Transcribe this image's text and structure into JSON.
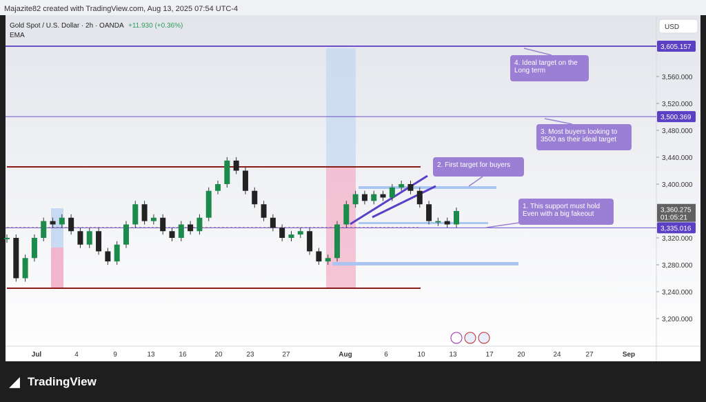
{
  "header": {
    "author": "Majazite82 created with TradingView.com, Aug 13, 2025 07:54 UTC-4"
  },
  "legend": {
    "symbol": "Gold Spot / U.S. Dollar · 2h · OANDA",
    "change": "+11.930 (+0.36%)",
    "indicator": "EMA"
  },
  "currency": "USD",
  "price_axis": {
    "ticks": [
      {
        "value": 3560,
        "label": "3,560.000"
      },
      {
        "value": 3520,
        "label": "3,520.000"
      },
      {
        "value": 3480,
        "label": "3,480.000"
      },
      {
        "value": 3440,
        "label": "3,440.000"
      },
      {
        "value": 3400,
        "label": "3,400.000"
      },
      {
        "value": 3320,
        "label": "3,320.000"
      },
      {
        "value": 3280,
        "label": "3,280.000"
      },
      {
        "value": 3240,
        "label": "3,240.000"
      },
      {
        "value": 3200,
        "label": "3,200.000"
      }
    ]
  },
  "price_labels": [
    {
      "value": 3605.157,
      "label": "3,605.157"
    },
    {
      "value": 3500.369,
      "label": "3,500.369"
    },
    {
      "value": 3335.016,
      "label": "3,335.016"
    }
  ],
  "last_price": {
    "value": 3360.275,
    "label": "3,360.275",
    "countdown": "01:05:21"
  },
  "date_axis": [
    "Jul",
    "4",
    "9",
    "13",
    "16",
    "20",
    "23",
    "27",
    "Aug",
    "6",
    "10",
    "13",
    "17",
    "20",
    "24",
    "27",
    "Sep"
  ],
  "closes": [
    3320,
    3260,
    3290,
    3320,
    3345,
    3340,
    3350,
    3330,
    3310,
    3330,
    3300,
    3285,
    3310,
    3340,
    3370,
    3345,
    3350,
    3330,
    3320,
    3340,
    3330,
    3350,
    3390,
    3400,
    3435,
    3420,
    3390,
    3370,
    3350,
    3335,
    3320,
    3325,
    3330,
    3300,
    3285,
    3290,
    3340,
    3370,
    3385,
    3375,
    3385,
    3380,
    3395,
    3400,
    3390,
    3370,
    3345,
    3345,
    3340,
    3360
  ],
  "annotations": [
    "4. Ideal target on the Long term",
    "3. Most buyers looking to 3500 as their ideal target",
    "2. First target for buyers",
    "1. This support must hold Even with a big fakeout"
  ],
  "brand": "TradingView"
}
